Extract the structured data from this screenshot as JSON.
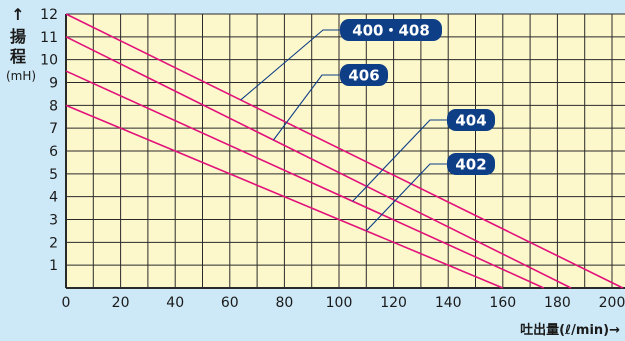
{
  "chart_data": {
    "type": "line",
    "title": "",
    "ylabel_arrow": "↑",
    "ylabel_chars": [
      "揚",
      "程"
    ],
    "yunit": "(mH)",
    "xlabel": "吐出量(ℓ/min)→",
    "xlim": [
      0,
      200
    ],
    "ylim": [
      0,
      12
    ],
    "xticks": [
      0,
      20,
      40,
      60,
      80,
      100,
      120,
      140,
      160,
      180,
      200
    ],
    "yticks": [
      1,
      2,
      3,
      4,
      5,
      6,
      7,
      8,
      9,
      10,
      11,
      12
    ],
    "grid": true,
    "series": [
      {
        "name": "400・408",
        "x": [
          0,
          204
        ],
        "y": [
          12,
          0
        ],
        "label_at": 64
      },
      {
        "name": "406",
        "x": [
          0,
          185
        ],
        "y": [
          11,
          0
        ],
        "label_at": 76
      },
      {
        "name": "404",
        "x": [
          0,
          175
        ],
        "y": [
          9.5,
          0
        ],
        "label_at": 105
      },
      {
        "name": "402",
        "x": [
          0,
          160
        ],
        "y": [
          8,
          0
        ],
        "label_at": 110
      }
    ],
    "labels": [
      {
        "text": "400・408",
        "series": 0
      },
      {
        "text": "406",
        "series": 1
      },
      {
        "text": "404",
        "series": 2
      },
      {
        "text": "402",
        "series": 3
      }
    ]
  },
  "colors": {
    "background": "#cde9f7",
    "plot": "#fdf7cc",
    "grid": "#2a2a2a",
    "line": "#e2127a",
    "tag": "#0d3e86",
    "leader": "#0d3e86"
  }
}
